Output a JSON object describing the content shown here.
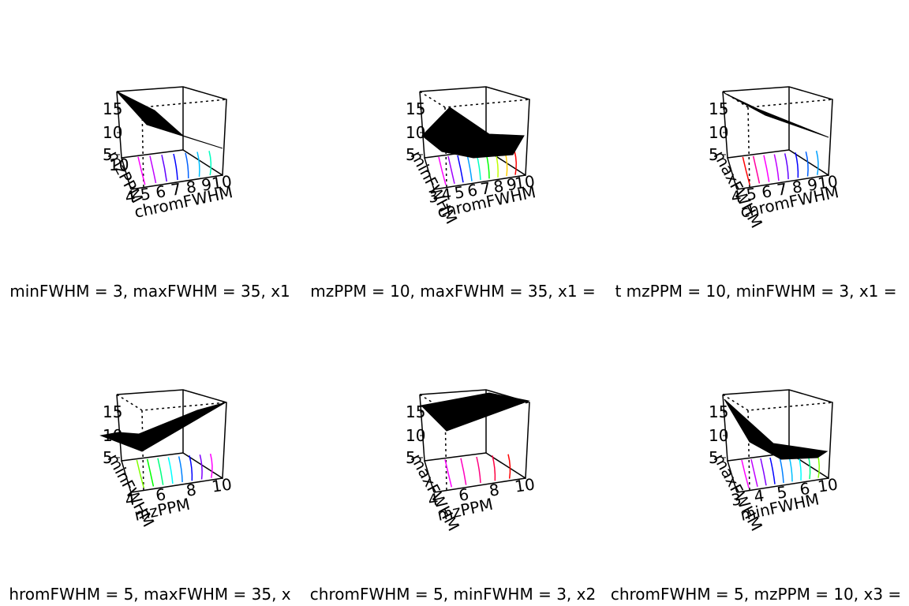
{
  "chart_data": [
    {
      "type": "surface3d",
      "subtitle": "minFWHM = 3, maxFWHM = 35, x1",
      "z_ticks": [
        "15",
        "10",
        "5"
      ],
      "back_axis_label": "mzPPM",
      "back_tick_label": "10",
      "front_axis_label": "chromFWHM",
      "front_tick_labels": [
        "4",
        "5",
        "6",
        "7",
        "8",
        "9",
        "10"
      ],
      "surface_color": "#000000",
      "contour_colors": [
        "#ff00ff",
        "#c000ff",
        "#6000ff",
        "#0000ff",
        "#0060ff",
        "#00c0ff",
        "#00ffc0"
      ]
    },
    {
      "type": "surface3d",
      "subtitle": "mzPPM = 10, maxFWHM = 35, x1 =",
      "z_ticks": [
        "15",
        "10",
        "5"
      ],
      "back_axis_label": "minFWHM",
      "front_axis_label": "chromFWHM",
      "front_tick_labels": [
        "3",
        "4",
        "5",
        "6",
        "7",
        "8",
        "9",
        "10"
      ],
      "surface_color": "#000000",
      "contour_colors": [
        "#ff00ff",
        "#a000ff",
        "#0000ff",
        "#00a0ff",
        "#00ffc0",
        "#00ff00",
        "#c0ff00",
        "#ffd000",
        "#ff0000"
      ]
    },
    {
      "type": "surface3d",
      "subtitle": "t mzPPM = 10, minFWHM = 3, x1 =",
      "z_ticks": [
        "15",
        "10",
        "5"
      ],
      "back_axis_label": "maxFWHM",
      "front_axis_label": "chromFWHM",
      "front_tick_labels": [
        "4",
        "5",
        "6",
        "7",
        "8",
        "9",
        "10"
      ],
      "surface_color": "#000000",
      "contour_colors": [
        "#ff0000",
        "#ff00a0",
        "#ff00ff",
        "#c000ff",
        "#6000ff",
        "#0000ff",
        "#0060ff",
        "#00a0ff"
      ]
    },
    {
      "type": "surface3d",
      "subtitle": "hromFWHM = 5, maxFWHM = 35, x",
      "z_ticks": [
        "15",
        "10",
        "5"
      ],
      "back_axis_label": "minFWHM",
      "front_axis_label": "mzPPM",
      "front_tick_labels": [
        "4",
        "6",
        "8",
        "10"
      ],
      "surface_color": "#000000",
      "contour_colors": [
        "#80ff00",
        "#00ff00",
        "#00ff80",
        "#00ffff",
        "#0080ff",
        "#0000ff",
        "#8000ff",
        "#ff00ff"
      ]
    },
    {
      "type": "surface3d",
      "subtitle": "chromFWHM = 5, minFWHM = 3, x2",
      "z_ticks": [
        "15",
        "10",
        "5"
      ],
      "back_axis_label": "maxFWHM",
      "front_axis_label": "mzPPM",
      "front_tick_labels": [
        "4",
        "6",
        "8",
        "10"
      ],
      "surface_color": "#000000",
      "contour_colors": [
        "#ff00ff",
        "#ff00c0",
        "#ff0080",
        "#ff0040",
        "#ff0000"
      ]
    },
    {
      "type": "surface3d",
      "subtitle": "chromFWHM = 5, mzPPM = 10, x3 =",
      "z_ticks": [
        "15",
        "10",
        "5"
      ],
      "back_axis_label": "maxFWHM",
      "front_axis_label": "minFWHM",
      "front_tick_labels": [
        "3",
        "4",
        "5",
        "6",
        "10"
      ],
      "surface_color": "#000000",
      "contour_colors": [
        "#ff00ff",
        "#c000ff",
        "#8000ff",
        "#0000ff",
        "#0080ff",
        "#00c0ff",
        "#00ffff",
        "#00ff80",
        "#80ff00"
      ]
    }
  ]
}
